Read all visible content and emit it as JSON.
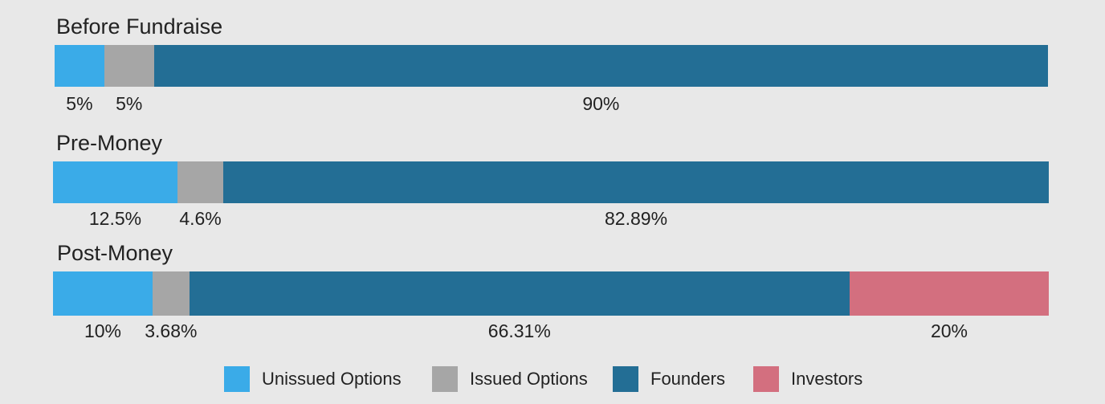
{
  "chart_data": {
    "type": "bar",
    "orientation": "horizontal",
    "stacked": true,
    "normalized_100": true,
    "series": [
      {
        "name": "Unissued Options",
        "color": "#3aabe8"
      },
      {
        "name": "Issued Options",
        "color": "#a6a6a6"
      },
      {
        "name": "Founders",
        "color": "#236e95"
      },
      {
        "name": "Investors",
        "color": "#d36f7f"
      }
    ],
    "rows": [
      {
        "title": "Before Fundraise",
        "values": [
          5,
          5,
          90,
          0
        ],
        "labels": [
          "5%",
          "5%",
          "90%",
          ""
        ]
      },
      {
        "title": "Pre-Money",
        "values": [
          12.5,
          4.6,
          82.89,
          0
        ],
        "labels": [
          "12.5%",
          "4.6%",
          "82.89%",
          ""
        ]
      },
      {
        "title": "Post-Money",
        "values": [
          10,
          3.68,
          66.31,
          20
        ],
        "labels": [
          "10%",
          "3.68%",
          "66.31%",
          "20%"
        ]
      }
    ],
    "legend_position": "bottom"
  }
}
